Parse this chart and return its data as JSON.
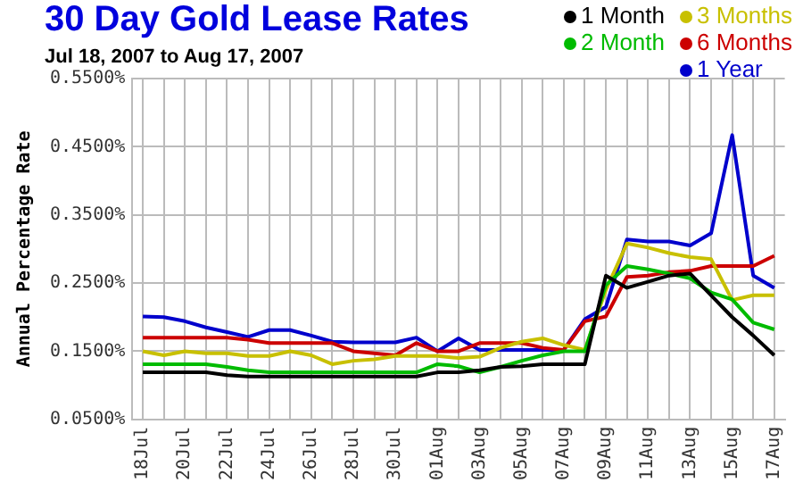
{
  "chart_data": {
    "type": "line",
    "title": "30 Day Gold Lease Rates",
    "subtitle": "Jul 18, 2007 to Aug 17, 2007",
    "ylabel": "Annual Percentage Rate",
    "categories": [
      "18Jul",
      null,
      "20Jul",
      null,
      "22Jul",
      null,
      "24Jul",
      null,
      "26Jul",
      null,
      "28Jul",
      null,
      "30Jul",
      null,
      "01Aug",
      null,
      "03Aug",
      null,
      "05Aug",
      null,
      "07Aug",
      null,
      "09Aug",
      null,
      "11Aug",
      null,
      "13Aug",
      null,
      "15Aug",
      null,
      "17Aug"
    ],
    "series": [
      {
        "name": "1 Month",
        "color": "#000000",
        "values": [
          0.119,
          0.119,
          0.119,
          0.119,
          0.115,
          0.113,
          0.113,
          0.113,
          0.113,
          0.113,
          0.113,
          0.113,
          0.113,
          0.113,
          0.119,
          0.119,
          0.122,
          0.127,
          0.128,
          0.131,
          0.131,
          0.131,
          0.261,
          0.243,
          0.252,
          0.261,
          0.264,
          0.232,
          0.2,
          0.173,
          0.144
        ]
      },
      {
        "name": "2 Month",
        "color": "#00bb00",
        "values": [
          0.131,
          0.131,
          0.131,
          0.131,
          0.127,
          0.122,
          0.119,
          0.119,
          0.119,
          0.119,
          0.119,
          0.119,
          0.119,
          0.119,
          0.131,
          0.128,
          0.119,
          0.127,
          0.136,
          0.144,
          0.15,
          0.15,
          0.247,
          0.275,
          0.27,
          0.264,
          0.257,
          0.236,
          0.226,
          0.192,
          0.182
        ]
      },
      {
        "name": "3 Months",
        "color": "#c8c000",
        "values": [
          0.15,
          0.144,
          0.15,
          0.147,
          0.147,
          0.143,
          0.143,
          0.15,
          0.144,
          0.131,
          0.136,
          0.138,
          0.143,
          0.143,
          0.143,
          0.14,
          0.142,
          0.155,
          0.164,
          0.169,
          0.159,
          0.152,
          0.24,
          0.308,
          0.302,
          0.294,
          0.288,
          0.285,
          0.225,
          0.232,
          0.232
        ]
      },
      {
        "name": "6 Months",
        "color": "#cc0000",
        "values": [
          0.17,
          0.17,
          0.17,
          0.17,
          0.17,
          0.167,
          0.162,
          0.162,
          0.162,
          0.162,
          0.15,
          0.147,
          0.144,
          0.162,
          0.15,
          0.15,
          0.162,
          0.162,
          0.162,
          0.155,
          0.152,
          0.194,
          0.201,
          0.259,
          0.261,
          0.266,
          0.268,
          0.275,
          0.275,
          0.275,
          0.29
        ]
      },
      {
        "name": "1 Year",
        "color": "#0000cc",
        "values": [
          0.201,
          0.2,
          0.194,
          0.185,
          0.178,
          0.171,
          0.181,
          0.181,
          0.173,
          0.164,
          0.163,
          0.163,
          0.163,
          0.17,
          0.15,
          0.169,
          0.152,
          0.152,
          0.152,
          0.152,
          0.152,
          0.197,
          0.215,
          0.314,
          0.311,
          0.311,
          0.305,
          0.323,
          0.467,
          0.261,
          0.243
        ]
      }
    ],
    "ylim": [
      0.05,
      0.55
    ],
    "yticks": [
      {
        "value": 0.05,
        "label": "0.0500%"
      },
      {
        "value": 0.15,
        "label": "0.1500%"
      },
      {
        "value": 0.25,
        "label": "0.2500%"
      },
      {
        "value": 0.35,
        "label": "0.3500%"
      },
      {
        "value": 0.45,
        "label": "0.4500%"
      },
      {
        "value": 0.55,
        "label": "0.5500%"
      }
    ],
    "grid": true,
    "legend": "top right",
    "marker": "none",
    "line_style": "solid"
  }
}
